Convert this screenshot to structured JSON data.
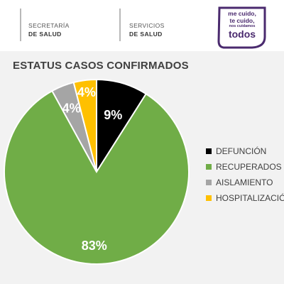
{
  "header": {
    "org1": {
      "line1": "SECRETARÍA",
      "line2": "DE SALUD"
    },
    "org2": {
      "line1": "SERVICIOS",
      "line2": "DE SALUD"
    },
    "badge": {
      "line1": "me cuido,",
      "line2": "te cuido,",
      "line3": "nos cuidamos",
      "line4": "todos"
    }
  },
  "colors": {
    "header_bar": "#b8b8b8",
    "badge_purple": "#4a2a6e",
    "background": "#f2f2f2"
  },
  "chart_data": {
    "type": "pie",
    "title": "ESTATUS CASOS CONFIRMADOS",
    "legend_position": "right",
    "slices": [
      {
        "label": "DEFUNCIÓN",
        "value": 9,
        "display": "9%",
        "color": "#000000"
      },
      {
        "label": "RECUPERADOS",
        "value": 83,
        "display": "83%",
        "color": "#70ad47"
      },
      {
        "label": "AISLAMIENTO",
        "value": 4,
        "display": "4%",
        "color": "#a5a5a5"
      },
      {
        "label": "HOSPITALIZACIÓN",
        "value": 4,
        "display": "4%",
        "color": "#ffc000"
      }
    ]
  }
}
